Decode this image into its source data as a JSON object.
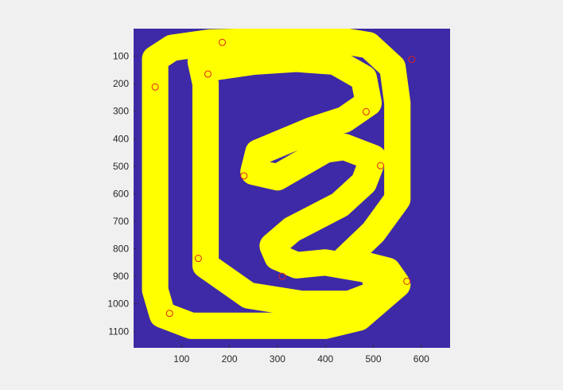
{
  "colors": {
    "figure_background": "#f0f0f0",
    "mask_background": "#3e2aa6",
    "track": "#ffff00",
    "marker": "#e02020",
    "tick_text": "#262626",
    "axis_line": "#262626"
  },
  "chart_data": {
    "type": "heatmap",
    "title": "",
    "xlabel": "",
    "ylabel": "",
    "xlim": [
      0,
      660
    ],
    "ylim": [
      0,
      1160
    ],
    "y_direction": "reverse",
    "grid": false,
    "xticks": [
      100,
      200,
      300,
      400,
      500,
      600
    ],
    "yticks": [
      100,
      200,
      300,
      400,
      500,
      600,
      700,
      800,
      900,
      1000,
      1100
    ],
    "image": {
      "description": "binary track mask",
      "values": [
        "background",
        "track"
      ]
    },
    "track_outer_path": [
      [
        15,
        90
      ],
      [
        30,
        60
      ],
      [
        90,
        20
      ],
      [
        170,
        8
      ],
      [
        420,
        4
      ],
      [
        500,
        30
      ],
      [
        560,
        120
      ],
      [
        600,
        260
      ],
      [
        600,
        630
      ],
      [
        540,
        770
      ],
      [
        470,
        870
      ],
      [
        540,
        880
      ],
      [
        620,
        920
      ],
      [
        610,
        1000
      ],
      [
        520,
        1080
      ],
      [
        420,
        1120
      ],
      [
        150,
        1120
      ],
      [
        40,
        1080
      ],
      [
        15,
        1000
      ],
      [
        15,
        90
      ]
    ],
    "track_inner_path": [
      [
        75,
        200
      ],
      [
        100,
        140
      ],
      [
        160,
        110
      ],
      [
        320,
        95
      ],
      [
        420,
        95
      ],
      [
        480,
        140
      ],
      [
        530,
        260
      ],
      [
        530,
        560
      ],
      [
        480,
        710
      ],
      [
        400,
        820
      ],
      [
        430,
        850
      ],
      [
        520,
        900
      ],
      [
        480,
        990
      ],
      [
        420,
        1030
      ],
      [
        150,
        1030
      ],
      [
        90,
        990
      ],
      [
        75,
        900
      ],
      [
        75,
        200
      ]
    ],
    "track_width": 55,
    "track_paths": [
      [
        [
          140,
          120
        ],
        [
          150,
          200
        ],
        [
          150,
          860
        ],
        [
          240,
          970
        ],
        [
          350,
          1000
        ],
        [
          450,
          1000
        ],
        [
          510,
          960
        ],
        [
          500,
          880
        ],
        [
          400,
          850
        ],
        [
          340,
          860
        ],
        [
          300,
          830
        ],
        [
          290,
          790
        ],
        [
          330,
          730
        ],
        [
          430,
          640
        ],
        [
          480,
          560
        ],
        [
          500,
          470
        ],
        [
          440,
          430
        ],
        [
          400,
          440
        ],
        [
          340,
          500
        ],
        [
          300,
          540
        ],
        [
          250,
          520
        ],
        [
          260,
          450
        ],
        [
          370,
          370
        ],
        [
          440,
          330
        ],
        [
          490,
          270
        ],
        [
          480,
          180
        ],
        [
          420,
          120
        ],
        [
          340,
          110
        ],
        [
          250,
          120
        ],
        [
          170,
          140
        ]
      ],
      [
        [
          160,
          50
        ],
        [
          420,
          40
        ],
        [
          490,
          60
        ],
        [
          540,
          140
        ],
        [
          550,
          270
        ],
        [
          550,
          620
        ],
        [
          500,
          740
        ],
        [
          440,
          840
        ],
        [
          530,
          880
        ],
        [
          550,
          930
        ],
        [
          470,
          1050
        ],
        [
          400,
          1080
        ],
        [
          120,
          1080
        ],
        [
          60,
          1040
        ],
        [
          45,
          950
        ],
        [
          45,
          110
        ],
        [
          80,
          70
        ],
        [
          160,
          50
        ]
      ]
    ],
    "series": [
      {
        "type": "scatter",
        "marker": "circle",
        "x": [
          185,
          580,
          155,
          45,
          485,
          515,
          230,
          135,
          310,
          570,
          75
        ],
        "y": [
          50,
          112,
          165,
          212,
          302,
          498,
          535,
          835,
          900,
          918,
          1035
        ]
      }
    ]
  }
}
